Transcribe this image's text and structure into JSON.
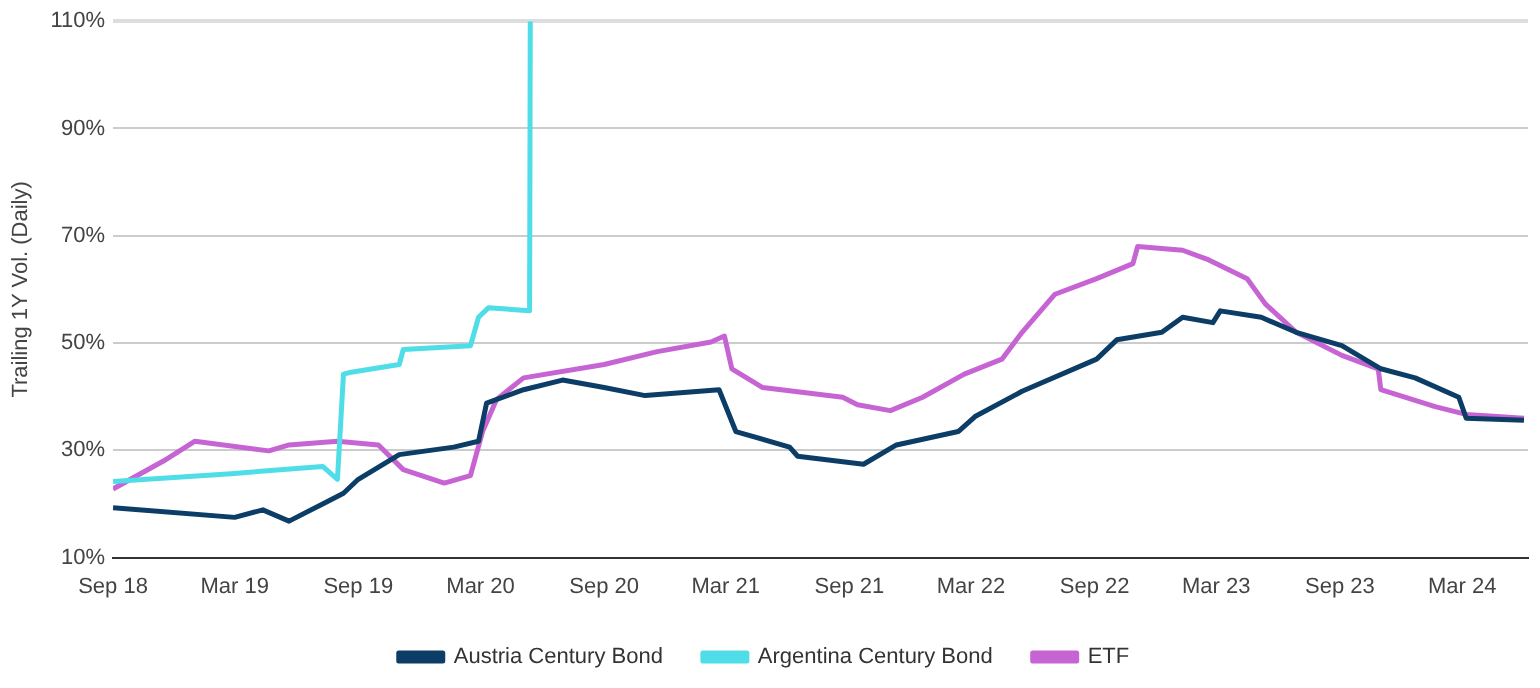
{
  "chart_data": {
    "type": "line",
    "ylabel": "Trailing 1Y Vol. (Daily)",
    "xlim": [
      "2018-09-01",
      "2024-06-07"
    ],
    "xticks": [
      {
        "value": "2018-09-01",
        "label": "Sep 18"
      },
      {
        "value": "2019-03-01",
        "label": "Mar 19"
      },
      {
        "value": "2019-09-01",
        "label": "Sep 19"
      },
      {
        "value": "2020-03-01",
        "label": "Mar 20"
      },
      {
        "value": "2020-09-01",
        "label": "Sep 20"
      },
      {
        "value": "2021-03-01",
        "label": "Mar 21"
      },
      {
        "value": "2021-09-01",
        "label": "Sep 21"
      },
      {
        "value": "2022-03-01",
        "label": "Mar 22"
      },
      {
        "value": "2022-09-01",
        "label": "Sep 22"
      },
      {
        "value": "2023-03-01",
        "label": "Mar 23"
      },
      {
        "value": "2023-09-01",
        "label": "Sep 23"
      },
      {
        "value": "2024-03-01",
        "label": "Mar 24"
      }
    ],
    "ylim": [
      10,
      110
    ],
    "yticks": [
      {
        "value": 10,
        "label": "10%"
      },
      {
        "value": 30,
        "label": "30%"
      },
      {
        "value": 50,
        "label": "50%"
      },
      {
        "value": 70,
        "label": "70%"
      },
      {
        "value": 90,
        "label": "90%"
      },
      {
        "value": 110,
        "label": "110%"
      }
    ],
    "grid": "y",
    "legend": "bottom",
    "marker": "none",
    "line_style": "solid",
    "series": [
      {
        "name": "Austria Century Bond",
        "color": "#0b3d66",
        "x": [
          "2018-09-01",
          "2019-03-01",
          "2019-04-12",
          "2019-05-21",
          "2019-07-10",
          "2019-08-10",
          "2019-09-01",
          "2019-11-01",
          "2020-01-21",
          "2020-02-27",
          "2020-03-10",
          "2020-05-04",
          "2020-07-01",
          "2020-09-01",
          "2020-11-01",
          "2021-02-19",
          "2021-03-16",
          "2021-06-04",
          "2021-06-16",
          "2021-09-22",
          "2021-11-10",
          "2022-02-10",
          "2022-03-07",
          "2022-05-16",
          "2022-09-04",
          "2022-10-04",
          "2022-12-10",
          "2023-01-10",
          "2023-02-24",
          "2023-03-07",
          "2023-05-07",
          "2023-06-28",
          "2023-09-04",
          "2023-11-01",
          "2023-12-22",
          "2024-02-25",
          "2024-03-07",
          "2024-06-01"
        ],
        "values": [
          19.3,
          17.5,
          18.9,
          16.8,
          20,
          22,
          24.6,
          29.2,
          30.6,
          31.7,
          38.8,
          41.3,
          43.1,
          41.7,
          40.2,
          41.3,
          33.5,
          30.6,
          28.9,
          27.4,
          31,
          33.5,
          36.3,
          41,
          47,
          50.6,
          52,
          54.8,
          53.8,
          56,
          54.8,
          52,
          49.5,
          45.2,
          43.5,
          39.9,
          36,
          35.6
        ]
      },
      {
        "name": "Argentina Century Bond",
        "color": "#4fdde8",
        "x": [
          "2018-09-01",
          "2019-03-01",
          "2019-07-10",
          "2019-08-01",
          "2019-08-10",
          "2019-08-19",
          "2019-11-01",
          "2019-11-07",
          "2020-02-15",
          "2020-02-27",
          "2020-03-13",
          "2020-05-13",
          "2020-05-14"
        ],
        "values": [
          24.2,
          25.7,
          27,
          24.6,
          44.2,
          44.5,
          46,
          48.8,
          49.5,
          54.8,
          56.6,
          56,
          110
        ]
      },
      {
        "name": "ETF",
        "color": "#c764d4",
        "x": [
          "2018-09-01",
          "2018-11-15",
          "2019-01-01",
          "2019-04-21",
          "2019-05-21",
          "2019-08-01",
          "2019-10-01",
          "2019-11-07",
          "2020-01-07",
          "2020-02-15",
          "2020-03-04",
          "2020-03-25",
          "2020-05-04",
          "2020-09-01",
          "2020-11-19",
          "2021-02-07",
          "2021-02-27",
          "2021-03-10",
          "2021-04-25",
          "2021-08-22",
          "2021-09-13",
          "2021-11-01",
          "2021-12-19",
          "2022-02-19",
          "2022-04-16",
          "2022-05-16",
          "2022-07-04",
          "2022-09-04",
          "2022-10-28",
          "2022-11-04",
          "2023-01-10",
          "2023-02-18",
          "2023-04-16",
          "2023-05-13",
          "2023-06-28",
          "2023-09-04",
          "2023-10-28",
          "2023-11-01",
          "2024-01-22",
          "2024-03-07",
          "2024-06-01"
        ],
        "values": [
          22.8,
          28,
          31.7,
          29.9,
          31,
          31.7,
          31,
          26.4,
          23.9,
          25.3,
          33.5,
          39.5,
          43.5,
          46,
          48.4,
          50.2,
          51.3,
          45.2,
          41.7,
          39.9,
          38.5,
          37.4,
          39.9,
          44.2,
          47,
          52,
          59.1,
          62,
          64.8,
          68,
          67.3,
          65.5,
          62,
          57.3,
          52,
          47.7,
          45.2,
          41.3,
          38.1,
          36.7,
          36
        ]
      }
    ]
  }
}
